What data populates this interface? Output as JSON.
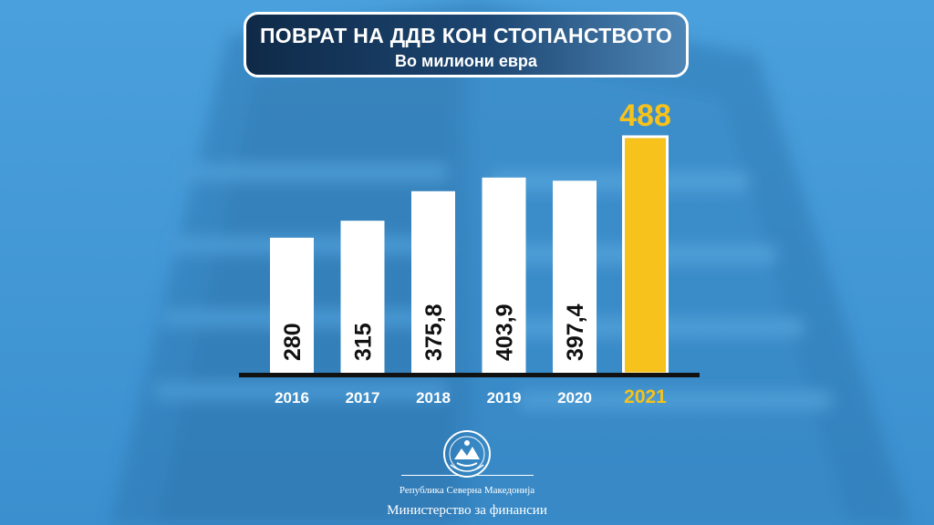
{
  "header": {
    "title": "ПОВРАТ НА ДДВ КОН СТОПАНСТВОТО",
    "subtitle": "Во милиони евра"
  },
  "chart_data": {
    "type": "bar",
    "categories": [
      "2016",
      "2017",
      "2018",
      "2019",
      "2020",
      "2021"
    ],
    "values": [
      280,
      315,
      375.8,
      403.9,
      397.4,
      488
    ],
    "value_labels": [
      "280",
      "315",
      "375,8",
      "403,9",
      "397,4",
      "488"
    ],
    "highlight_index": 5,
    "ylim": [
      0,
      488
    ],
    "grid": false,
    "legend": "none"
  },
  "colors": {
    "bar": "#ffffff",
    "highlight": "#f6c21b",
    "baseline": "#111111",
    "label_dark": "#111111",
    "title_bg": "#16375c"
  },
  "footer": {
    "emblem_icon": "coat-of-arms-icon",
    "republic": "Република Северна Македонија",
    "ministry": "Министерство за финансии"
  }
}
